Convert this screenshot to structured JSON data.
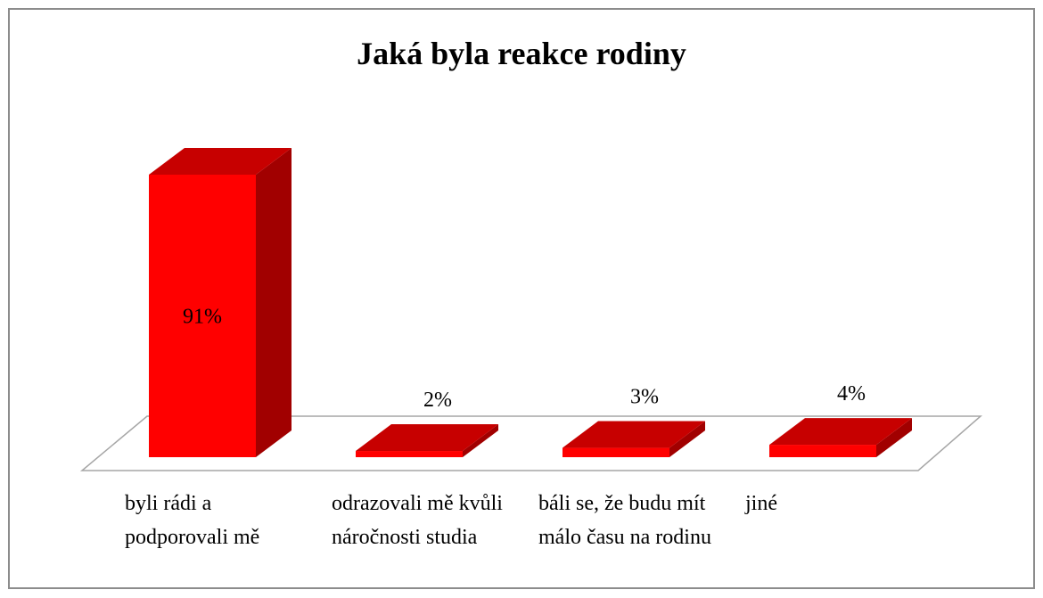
{
  "chart_data": {
    "type": "bar3d",
    "title": "Jaká byla reakce rodiny",
    "categories": [
      "byli rádi a podporovali mě",
      "odrazovali mě kvůli náročnosti studia",
      "báli se, že budu mít málo času na rodinu",
      "jiné"
    ],
    "values": [
      91,
      2,
      3,
      4
    ],
    "value_labels": [
      "91%",
      "2%",
      "3%",
      "4%"
    ],
    "color": "#ff0000"
  }
}
